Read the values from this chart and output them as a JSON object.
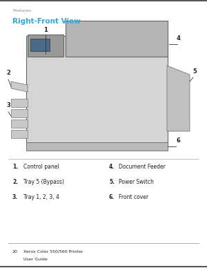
{
  "page_number": "20",
  "printer_name": "Xerox Color 550/560 Printer",
  "user_guide": "User Guide",
  "section": "Features",
  "title": "Right-Front View",
  "title_color": "#2fa8d8",
  "items_left": [
    {
      "num": "1.",
      "label": "Control panel"
    },
    {
      "num": "2.",
      "label": "Tray 5 (Bypass)"
    },
    {
      "num": "3.",
      "label": "Tray 1, 2, 3, 4"
    }
  ],
  "items_right": [
    {
      "num": "4.",
      "label": "Document Feeder"
    },
    {
      "num": "5.",
      "label": "Power Switch"
    },
    {
      "num": "6.",
      "label": "Front cover"
    }
  ],
  "bg_color": "#ffffff",
  "text_color": "#231f20",
  "border_color": "#555555",
  "footer_color": "#231f20"
}
